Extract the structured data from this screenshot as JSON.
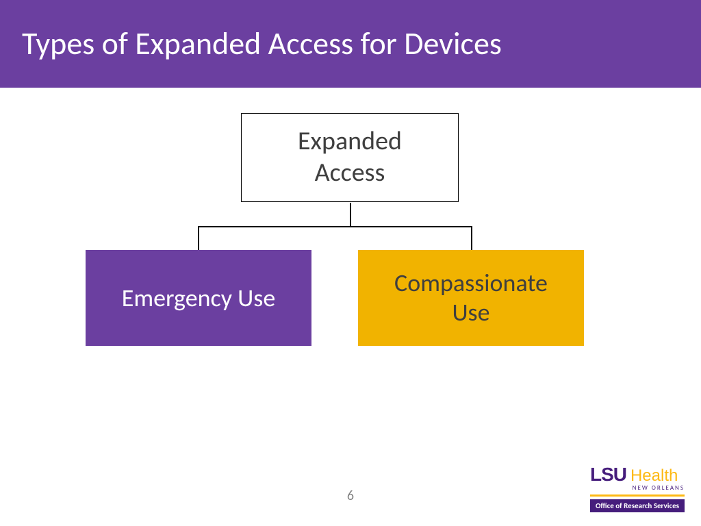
{
  "header": {
    "title": "Types of Expanded Access for Devices",
    "background_color": "#6b3fa0",
    "text_color": "#ffffff",
    "title_fontsize": 46
  },
  "diagram": {
    "type": "tree",
    "root": {
      "label": "Expanded\nAccess",
      "fill_color": "#ffffff",
      "border_color": "#000000",
      "text_color": "#3f3f3f",
      "fontsize": 38
    },
    "children": [
      {
        "label": "Emergency Use",
        "fill_color": "#6b3fa0",
        "text_color": "#ffffff",
        "fontsize": 36
      },
      {
        "label": "Compassionate\nUse",
        "fill_color": "#f1b300",
        "text_color": "#3f3f3f",
        "fontsize": 36
      }
    ],
    "connector_color": "#000000"
  },
  "page_number": "6",
  "footer": {
    "logo_main": "LSU",
    "logo_secondary": "Health",
    "logo_sub": "NEW ORLEANS",
    "office_label": "Office of Research Services",
    "purple": "#461d7c",
    "gold": "#fdb913"
  }
}
